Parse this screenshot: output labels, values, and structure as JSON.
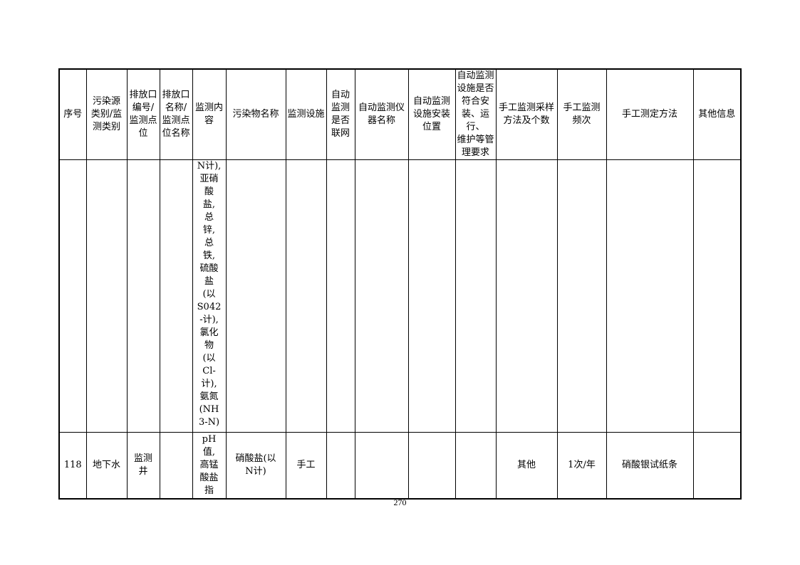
{
  "headers": [
    "序号",
    "污染源\n类别/监\n测类别",
    "排放口\n编号/\n监测点\n位",
    "排放口\n名称/\n监测点\n位名称",
    "监测内\n容",
    "污染物名称",
    "监测设施",
    "自动\n监测\n是否\n联网",
    "自动监测仪\n器名称",
    "自动监测\n设施安装\n位置",
    "自动监测\n设施是否\n符合安\n装、运行、\n维护等管\n理要求",
    "手工监测采样\n方法及个数",
    "手工监测\n频次",
    "手工测定方法",
    "其他信息"
  ],
  "rows": [
    [
      "",
      "",
      "",
      "",
      "N计),\n亚硝\n酸\n盐,\n总\n锌,\n总\n铁,\n硫酸\n盐\n(以\nS042\n-计),\n氯化\n物\n(以\nCl-\n计),\n氨氮\n(NH\n3-N)",
      "",
      "",
      "",
      "",
      "",
      "",
      "",
      "",
      "",
      ""
    ],
    [
      "118",
      "地下水",
      "监测\n井",
      "",
      "pH\n值,\n高锰\n酸盐\n指",
      "硝酸盐(以\nN计)",
      "手工",
      "",
      "",
      "",
      "",
      "其他",
      "1次/年",
      "硝酸银试纸条",
      ""
    ]
  ],
  "page_number": "270"
}
